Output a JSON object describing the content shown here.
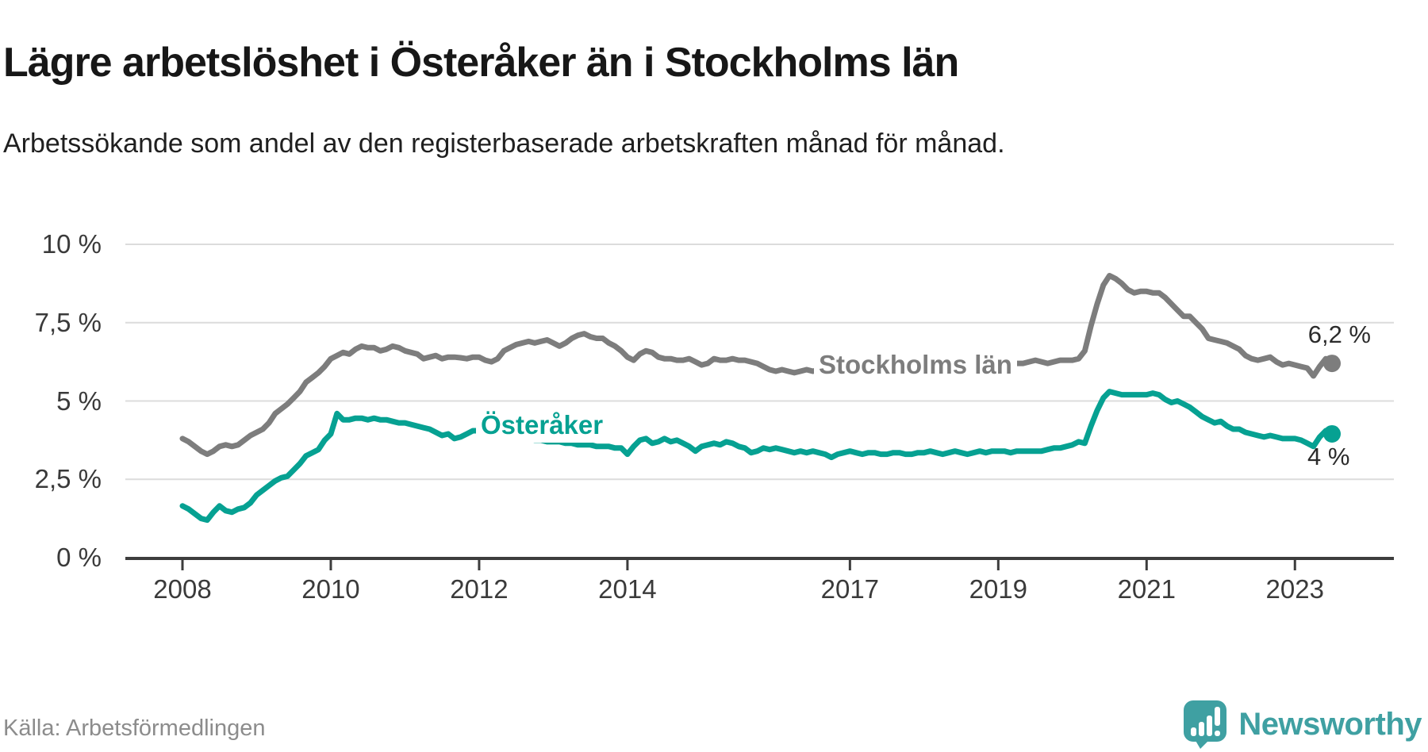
{
  "header": {
    "title": "Lägre arbetslöshet i Österåker än i Stockholms län",
    "subtitle": "Arbetssökande som andel av den registerbaserade arbetskraften månad för månad."
  },
  "footer": {
    "source": "Källa: Arbetsförmedlingen",
    "brand": "Newsworthy",
    "brand_color": "#3fa0a2"
  },
  "chart_data": {
    "type": "line",
    "x_unit": "month",
    "x_start": "2008-01",
    "x_end": "2023-07",
    "ylim": [
      0,
      10
    ],
    "grid": true,
    "axis_color": "#3d3d3d",
    "grid_color": "#dcdcdc",
    "y_ticks": [
      "10 %",
      "7,5 %",
      "5 %",
      "2,5 %",
      "0 %"
    ],
    "y_tick_values": [
      10,
      7.5,
      5,
      2.5,
      0
    ],
    "x_ticks": [
      "2008",
      "2010",
      "2012",
      "2014",
      "2017",
      "2019",
      "2021",
      "2023"
    ],
    "x_tick_years": [
      2008,
      2010,
      2012,
      2014,
      2017,
      2019,
      2021,
      2023
    ],
    "series": [
      {
        "id": "sthlm",
        "name": "Stockholms län",
        "color": "#7d7d7d",
        "end_label": "6,2 %",
        "end_value": 6.2,
        "values": [
          3.8,
          3.7,
          3.55,
          3.4,
          3.3,
          3.4,
          3.55,
          3.6,
          3.55,
          3.6,
          3.75,
          3.9,
          4.0,
          4.1,
          4.3,
          4.6,
          4.75,
          4.9,
          5.1,
          5.3,
          5.6,
          5.75,
          5.9,
          6.1,
          6.35,
          6.45,
          6.55,
          6.5,
          6.65,
          6.75,
          6.7,
          6.7,
          6.6,
          6.65,
          6.75,
          6.7,
          6.6,
          6.55,
          6.5,
          6.35,
          6.4,
          6.45,
          6.35,
          6.4,
          6.4,
          6.38,
          6.35,
          6.4,
          6.4,
          6.3,
          6.25,
          6.35,
          6.6,
          6.7,
          6.8,
          6.85,
          6.9,
          6.85,
          6.9,
          6.95,
          6.85,
          6.75,
          6.85,
          7.0,
          7.1,
          7.15,
          7.05,
          7.0,
          7.0,
          6.85,
          6.75,
          6.6,
          6.4,
          6.3,
          6.5,
          6.6,
          6.55,
          6.4,
          6.35,
          6.35,
          6.3,
          6.3,
          6.35,
          6.25,
          6.15,
          6.2,
          6.35,
          6.3,
          6.3,
          6.35,
          6.3,
          6.3,
          6.25,
          6.2,
          6.1,
          6.0,
          5.95,
          6.0,
          5.95,
          5.9,
          5.95,
          6.0,
          5.95,
          6.0,
          6.05,
          6.1,
          6.1,
          6.15,
          6.2,
          6.2,
          6.15,
          6.15,
          6.1,
          6.15,
          6.2,
          6.2,
          6.15,
          6.15,
          6.1,
          6.1,
          6.1,
          6.15,
          6.1,
          6.1,
          6.05,
          6.1,
          6.15,
          6.1,
          6.1,
          6.05,
          6.1,
          6.1,
          6.15,
          6.2,
          6.2,
          6.2,
          6.2,
          6.25,
          6.3,
          6.25,
          6.2,
          6.25,
          6.3,
          6.3,
          6.3,
          6.35,
          6.6,
          7.4,
          8.1,
          8.7,
          9.0,
          8.9,
          8.75,
          8.55,
          8.45,
          8.5,
          8.5,
          8.45,
          8.45,
          8.3,
          8.1,
          7.9,
          7.7,
          7.7,
          7.5,
          7.3,
          7.0,
          6.95,
          6.9,
          6.85,
          6.75,
          6.65,
          6.45,
          6.35,
          6.3,
          6.35,
          6.4,
          6.25,
          6.15,
          6.2,
          6.15,
          6.1,
          6.05,
          5.8,
          6.1,
          6.35,
          6.2
        ]
      },
      {
        "id": "osteraker",
        "name": "Österåker",
        "color": "#06a192",
        "end_label": "4 %",
        "end_value": 4.0,
        "values": [
          1.65,
          1.55,
          1.4,
          1.25,
          1.2,
          1.45,
          1.65,
          1.5,
          1.45,
          1.55,
          1.6,
          1.75,
          2.0,
          2.15,
          2.3,
          2.45,
          2.55,
          2.6,
          2.8,
          3.0,
          3.25,
          3.35,
          3.45,
          3.75,
          3.95,
          4.6,
          4.4,
          4.4,
          4.45,
          4.45,
          4.4,
          4.45,
          4.4,
          4.4,
          4.35,
          4.3,
          4.3,
          4.25,
          4.2,
          4.15,
          4.1,
          4.0,
          3.9,
          3.95,
          3.8,
          3.85,
          3.95,
          4.05,
          4.05,
          4.0,
          3.95,
          3.9,
          3.9,
          3.85,
          3.85,
          3.8,
          3.8,
          3.75,
          3.75,
          3.7,
          3.7,
          3.7,
          3.65,
          3.65,
          3.6,
          3.6,
          3.6,
          3.55,
          3.55,
          3.55,
          3.5,
          3.5,
          3.3,
          3.55,
          3.75,
          3.8,
          3.65,
          3.7,
          3.8,
          3.7,
          3.75,
          3.65,
          3.55,
          3.4,
          3.55,
          3.6,
          3.65,
          3.6,
          3.7,
          3.65,
          3.55,
          3.5,
          3.35,
          3.4,
          3.5,
          3.45,
          3.5,
          3.45,
          3.4,
          3.35,
          3.4,
          3.35,
          3.4,
          3.35,
          3.3,
          3.2,
          3.3,
          3.35,
          3.4,
          3.35,
          3.3,
          3.35,
          3.35,
          3.3,
          3.3,
          3.35,
          3.35,
          3.3,
          3.3,
          3.35,
          3.35,
          3.4,
          3.35,
          3.3,
          3.35,
          3.4,
          3.35,
          3.3,
          3.35,
          3.4,
          3.35,
          3.4,
          3.4,
          3.4,
          3.35,
          3.4,
          3.4,
          3.4,
          3.4,
          3.4,
          3.45,
          3.5,
          3.5,
          3.55,
          3.6,
          3.7,
          3.65,
          4.2,
          4.7,
          5.1,
          5.3,
          5.25,
          5.2,
          5.2,
          5.2,
          5.2,
          5.2,
          5.25,
          5.2,
          5.05,
          4.95,
          5.0,
          4.9,
          4.8,
          4.65,
          4.5,
          4.4,
          4.3,
          4.35,
          4.2,
          4.1,
          4.1,
          4.0,
          3.95,
          3.9,
          3.85,
          3.9,
          3.85,
          3.8,
          3.8,
          3.8,
          3.75,
          3.65,
          3.55,
          3.85,
          4.05,
          3.95
        ]
      }
    ]
  }
}
